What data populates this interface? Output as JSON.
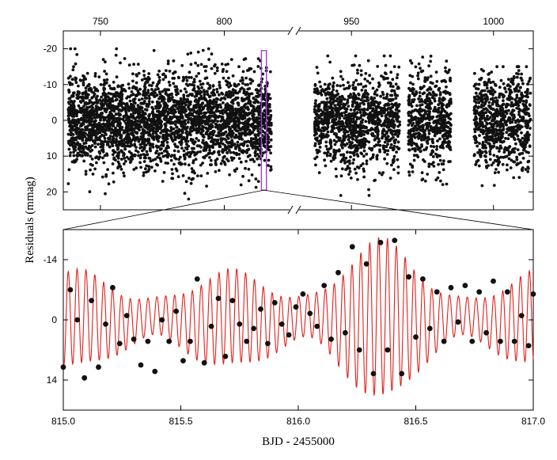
{
  "chart_data": [
    {
      "type": "scatter",
      "panel": "top",
      "xlabel": "",
      "ylabel": "Residuals (mmag)",
      "y_inverted": true,
      "ylim": [
        -25,
        25
      ],
      "y_ticks": [
        -20,
        -10,
        0,
        10,
        20
      ],
      "y_tick_labels": [
        "-20",
        "-10",
        "0",
        "10",
        "20"
      ],
      "x_broken_axis": true,
      "x_segments": [
        {
          "range": [
            735,
            827
          ],
          "ticks": [
            750,
            800
          ],
          "tick_labels": [
            "750",
            "800"
          ]
        },
        {
          "range": [
            931,
            1014
          ],
          "ticks": [
            950,
            1000
          ],
          "tick_labels": [
            "950",
            "1000"
          ]
        }
      ],
      "data_blocks": [
        {
          "x_range": [
            737,
            819
          ],
          "y_spread": 6.5,
          "y_extent": [
            -20,
            22
          ]
        },
        {
          "x_range": [
            937,
            967
          ],
          "y_spread": 6.5,
          "y_extent": [
            -18,
            21
          ]
        },
        {
          "x_range": [
            970,
            985
          ],
          "y_spread": 6.5,
          "y_extent": [
            -23,
            20
          ]
        },
        {
          "x_range": [
            993,
            1013
          ],
          "y_spread": 6.5,
          "y_extent": [
            -15,
            22
          ]
        }
      ],
      "highlight_box": {
        "x_range": [
          815,
          817
        ],
        "y_range": [
          -19.5,
          19.5
        ],
        "color": "#9a3fe0"
      },
      "grid": false,
      "legend": "none"
    },
    {
      "type": "scatter",
      "panel": "bottom",
      "xlabel": "BJD - 2455000",
      "ylabel": "",
      "y_inverted": true,
      "xlim": [
        815.0,
        817.0
      ],
      "ylim": [
        -21,
        21
      ],
      "x_ticks": [
        815.0,
        815.5,
        816.0,
        816.5,
        817.0
      ],
      "x_tick_labels": [
        "815.0",
        "815.5",
        "816.0",
        "816.5",
        "817.0"
      ],
      "y_ticks": [
        -14,
        0,
        14
      ],
      "y_tick_labels": [
        "-14",
        "0",
        "14"
      ],
      "observations": [
        [
          815.0,
          11.0
        ],
        [
          815.03,
          -7.0
        ],
        [
          815.06,
          0.0
        ],
        [
          815.09,
          13.5
        ],
        [
          815.12,
          -4.5
        ],
        [
          815.15,
          11.0
        ],
        [
          815.18,
          1.0
        ],
        [
          815.21,
          -7.5
        ],
        [
          815.24,
          5.5
        ],
        [
          815.27,
          -1.0
        ],
        [
          815.3,
          4.5
        ],
        [
          815.33,
          10.5
        ],
        [
          815.36,
          5.0
        ],
        [
          815.39,
          12.0
        ],
        [
          815.42,
          0.0
        ],
        [
          815.45,
          5.0
        ],
        [
          815.48,
          -2.0
        ],
        [
          815.51,
          9.5
        ],
        [
          815.54,
          5.0
        ],
        [
          815.57,
          -9.5
        ],
        [
          815.6,
          10.0
        ],
        [
          815.63,
          1.5
        ],
        [
          815.66,
          -5.0
        ],
        [
          815.69,
          8.5
        ],
        [
          815.72,
          -4.5
        ],
        [
          815.75,
          1.0
        ],
        [
          815.78,
          5.0
        ],
        [
          815.81,
          2.0
        ],
        [
          815.84,
          -2.5
        ],
        [
          815.87,
          5.5
        ],
        [
          815.9,
          -4.0
        ],
        [
          815.93,
          1.0
        ],
        [
          815.96,
          3.5
        ],
        [
          815.99,
          -3.0
        ],
        [
          816.02,
          -6.0
        ],
        [
          816.05,
          -1.5
        ],
        [
          816.08,
          1.5
        ],
        [
          816.11,
          -8.0
        ],
        [
          816.14,
          4.5
        ],
        [
          816.17,
          -11.0
        ],
        [
          816.2,
          3.0
        ],
        [
          816.23,
          -17.0
        ],
        [
          816.26,
          7.0
        ],
        [
          816.29,
          -13.0
        ],
        [
          816.32,
          12.5
        ],
        [
          816.35,
          -18.0
        ],
        [
          816.38,
          7.0
        ],
        [
          816.41,
          -18.5
        ],
        [
          816.44,
          12.5
        ],
        [
          816.47,
          -10.0
        ],
        [
          816.5,
          4.0
        ],
        [
          816.53,
          -9.5
        ],
        [
          816.56,
          2.0
        ],
        [
          816.59,
          -6.5
        ],
        [
          816.62,
          5.0
        ],
        [
          816.65,
          -7.5
        ],
        [
          816.68,
          0.5
        ],
        [
          816.71,
          -8.0
        ],
        [
          816.74,
          5.0
        ],
        [
          816.77,
          -6.5
        ],
        [
          816.8,
          3.0
        ],
        [
          816.83,
          -9.0
        ],
        [
          816.86,
          5.0
        ],
        [
          816.89,
          -6.5
        ],
        [
          816.92,
          5.0
        ],
        [
          816.95,
          -1.0
        ],
        [
          816.98,
          6.0
        ],
        [
          817.0,
          -6.0
        ]
      ],
      "model_curve_color": "#e0201b",
      "point_color": "#111111",
      "grid": false,
      "legend": "none"
    }
  ]
}
